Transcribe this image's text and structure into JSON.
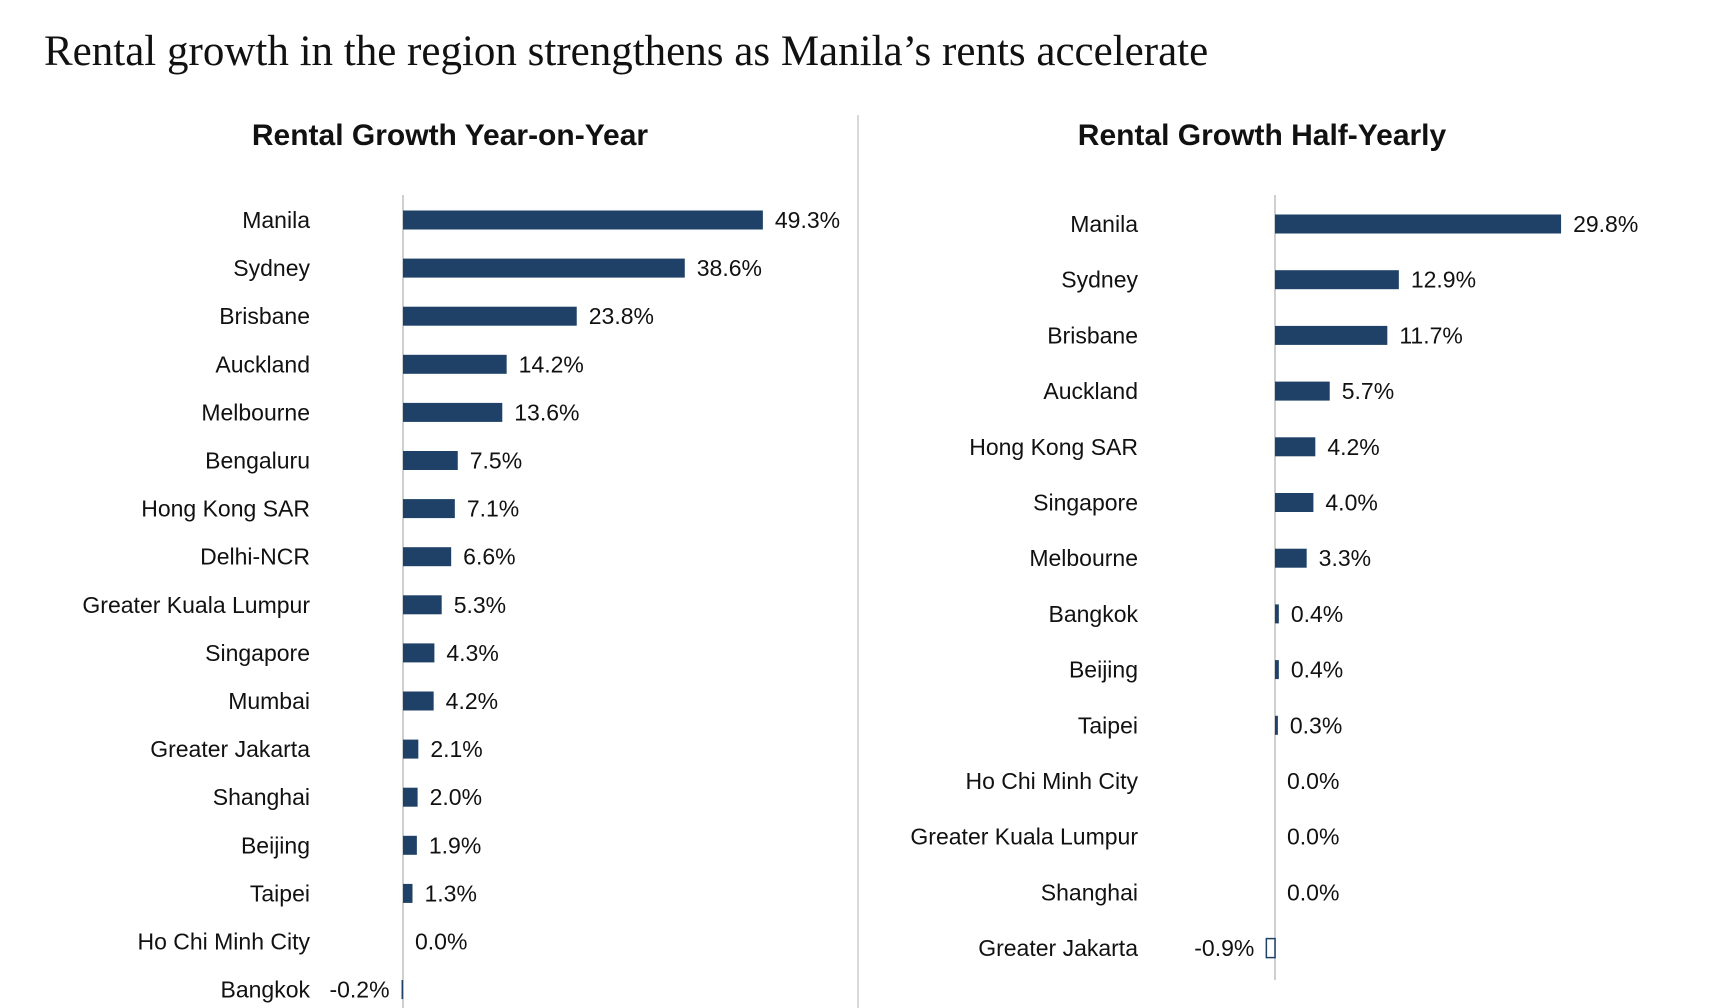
{
  "page": {
    "title": "Rental growth in the region strengthens as Manila’s rents accelerate"
  },
  "colors": {
    "bar": "#1f4168",
    "bar_outline": "#1f4168"
  },
  "chart_data": [
    {
      "type": "bar",
      "orientation": "horizontal",
      "title": "Rental Growth Year-on-Year",
      "xlabel": "",
      "ylabel": "",
      "value_unit": "%",
      "grid": false,
      "legend": "none",
      "xlim": [
        -0.2,
        49.3
      ],
      "categories": [
        "Manila",
        "Sydney",
        "Brisbane",
        "Auckland",
        "Melbourne",
        "Bengaluru",
        "Hong Kong SAR",
        "Delhi-NCR",
        "Greater Kuala Lumpur",
        "Singapore",
        "Mumbai",
        "Greater Jakarta",
        "Shanghai",
        "Beijing",
        "Taipei",
        "Ho Chi Minh City",
        "Bangkok"
      ],
      "values": [
        49.3,
        38.6,
        23.8,
        14.2,
        13.6,
        7.5,
        7.1,
        6.6,
        5.3,
        4.3,
        4.2,
        2.1,
        2.0,
        1.9,
        1.3,
        0.0,
        -0.2
      ],
      "data_labels": [
        "49.3%",
        "38.6%",
        "23.8%",
        "14.2%",
        "13.6%",
        "7.5%",
        "7.1%",
        "6.6%",
        "5.3%",
        "4.3%",
        "4.2%",
        "2.1%",
        "2.0%",
        "1.9%",
        "1.3%",
        "0.0%",
        "-0.2%"
      ]
    },
    {
      "type": "bar",
      "orientation": "horizontal",
      "title": "Rental Growth Half-Yearly",
      "xlabel": "",
      "ylabel": "",
      "value_unit": "%",
      "grid": false,
      "legend": "none",
      "xlim": [
        -0.9,
        29.8
      ],
      "categories": [
        "Manila",
        "Sydney",
        "Brisbane",
        "Auckland",
        "Hong Kong SAR",
        "Singapore",
        "Melbourne",
        "Bangkok",
        "Beijing",
        "Taipei",
        "Ho Chi Minh City",
        "Greater Kuala Lumpur",
        "Shanghai",
        "Greater Jakarta"
      ],
      "values": [
        29.8,
        12.9,
        11.7,
        5.7,
        4.2,
        4.0,
        3.3,
        0.4,
        0.4,
        0.3,
        0.0,
        0.0,
        0.0,
        -0.9
      ],
      "data_labels": [
        "29.8%",
        "12.9%",
        "11.7%",
        "5.7%",
        "4.2%",
        "4.0%",
        "3.3%",
        "0.4%",
        "0.4%",
        "0.3%",
        "0.0%",
        "0.0%",
        "0.0%",
        "-0.9%"
      ],
      "negative_bar_style": "outline"
    }
  ]
}
